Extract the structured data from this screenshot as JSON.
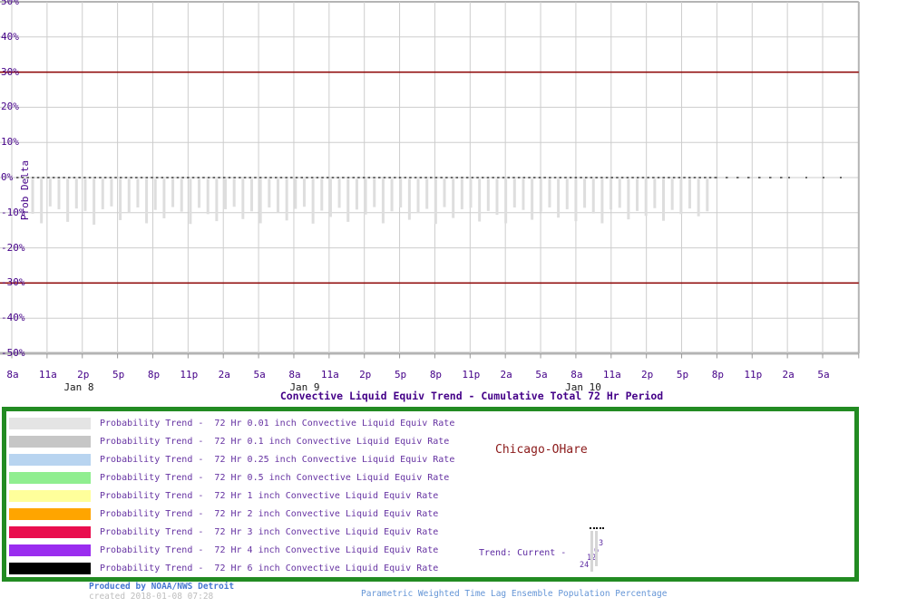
{
  "chart_data": {
    "type": "bar",
    "title": "Convective Liquid Equiv Trend - Cumulative Total 72 Hr Period",
    "ylabel": "Prob Delta",
    "ylim": [
      -50,
      50
    ],
    "y_tick_step": 10,
    "y_tick_suffix": "%",
    "grid": true,
    "x_tick_labels": [
      "8a",
      "11a",
      "2p",
      "5p",
      "8p",
      "11p",
      "2a",
      "5a",
      "8a",
      "11a",
      "2p",
      "5p",
      "8p",
      "11p",
      "2a",
      "5a",
      "8a",
      "11a",
      "2p",
      "5p",
      "8p",
      "11p",
      "2a",
      "5a"
    ],
    "x_date_labels": [
      "Jan 8",
      "Jan 9",
      "Jan 10"
    ],
    "thresholds": {
      "upper": 30,
      "lower": -30,
      "color": "#8b0000"
    },
    "zero_line": {
      "value": 0,
      "style": "dotted",
      "color": "#111111"
    },
    "series": [
      {
        "name": "Probability Trend Delta",
        "unit": "%",
        "values": [
          -10.3,
          -13.0,
          -8.2,
          -9.0,
          -12.6,
          -8.8,
          -9.5,
          -13.4,
          -9.0,
          -8.2,
          -12.1,
          -9.8,
          -8.5,
          -13.0,
          -9.2,
          -11.6,
          -8.4,
          -9.7,
          -13.2,
          -8.6,
          -10.4,
          -12.4,
          -9.0,
          -8.3,
          -11.8,
          -9.6,
          -13.0,
          -8.5,
          -10.0,
          -12.2,
          -8.9,
          -8.3,
          -13.1,
          -9.4,
          -11.2,
          -8.6,
          -12.6,
          -9.1,
          -10.5,
          -8.4,
          -13.0,
          -9.6,
          -8.5,
          -12.0,
          -10.1,
          -8.9,
          -13.2,
          -8.4,
          -11.5,
          -9.0,
          -8.6,
          -12.5,
          -9.5,
          -10.6,
          -13.0,
          -8.5,
          -9.2,
          -12.0,
          -9.7,
          -8.5,
          -11.4,
          -9.0,
          -12.4,
          -8.6,
          -10.2,
          -13.0,
          -9.1,
          -8.6,
          -11.9,
          -9.5,
          -10.9,
          -8.7,
          -12.3,
          -9.2,
          -10.4,
          -8.8,
          -11.0,
          -9.6
        ]
      }
    ]
  },
  "legend": {
    "border_color": "#228b22",
    "items": [
      {
        "color": "#e4e4e4",
        "label": "Probability Trend -  72 Hr 0.01 inch Convective Liquid Equiv Rate"
      },
      {
        "color": "#c6c6c6",
        "label": "Probability Trend -  72 Hr 0.1 inch Convective Liquid Equiv Rate"
      },
      {
        "color": "#b8d4f0",
        "label": "Probability Trend -  72 Hr 0.25 inch Convective Liquid Equiv Rate"
      },
      {
        "color": "#90ee90",
        "label": "Probability Trend -  72 Hr 0.5 inch Convective Liquid Equiv Rate"
      },
      {
        "color": "#ffff9b",
        "label": "Probability Trend -  72 Hr 1 inch Convective Liquid Equiv Rate"
      },
      {
        "color": "#ffa500",
        "label": "Probability Trend -  72 Hr 2 inch Convective Liquid Equiv Rate"
      },
      {
        "color": "#e90e4e",
        "label": "Probability Trend -  72 Hr 3 inch Convective Liquid Equiv Rate"
      },
      {
        "color": "#9a2def",
        "label": "Probability Trend -  72 Hr 4 inch Convective Liquid Equiv Rate"
      },
      {
        "color": "#000000",
        "label": "Probability Trend -  72 Hr 6 inch Convective Liquid Equiv Rate"
      }
    ]
  },
  "station": {
    "name": "Chicago-OHare"
  },
  "trend_key": {
    "label": "Trend: Current -",
    "hour_marks": [
      "3",
      "6",
      "12",
      "24"
    ]
  },
  "footer": {
    "produced_by": "Produced by NOAA/NWS Detroit",
    "created": "created 2018-01-08 07:28",
    "right_note": "Parametric Weighted Time Lag Ensemble Population Percentage"
  },
  "colors": {
    "grid": "#cdcdcd",
    "grid_border": "#b4b4b4",
    "threshold": "#8b0000",
    "bars": "#dedede",
    "axis_text": "#440088",
    "legend_text": "#6633a2",
    "station_text": "#8b1a1a",
    "footer_blue": "#4577d0"
  }
}
